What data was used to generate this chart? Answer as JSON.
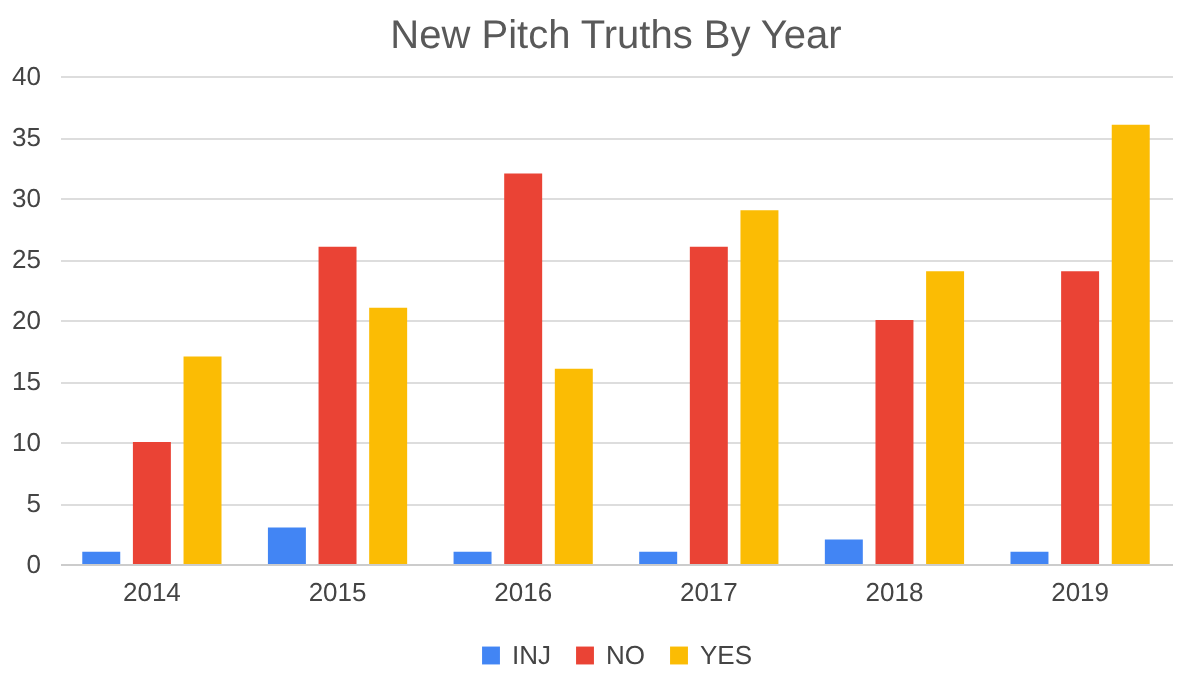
{
  "chart_data": {
    "type": "bar",
    "title": "New Pitch Truths By Year",
    "categories": [
      "2014",
      "2015",
      "2016",
      "2017",
      "2018",
      "2019"
    ],
    "series": [
      {
        "name": "INJ",
        "color": "#4285f4",
        "values": [
          1,
          3,
          1,
          1,
          2,
          1
        ]
      },
      {
        "name": "NO",
        "color": "#ea4335",
        "values": [
          10,
          26,
          32,
          26,
          20,
          24
        ]
      },
      {
        "name": "YES",
        "color": "#fbbc04",
        "values": [
          17,
          21,
          16,
          29,
          24,
          36
        ]
      }
    ],
    "ylim": [
      0,
      40
    ],
    "yticks": [
      0,
      5,
      10,
      15,
      20,
      25,
      30,
      35,
      40
    ],
    "grid": "y",
    "legend": "bottom"
  }
}
